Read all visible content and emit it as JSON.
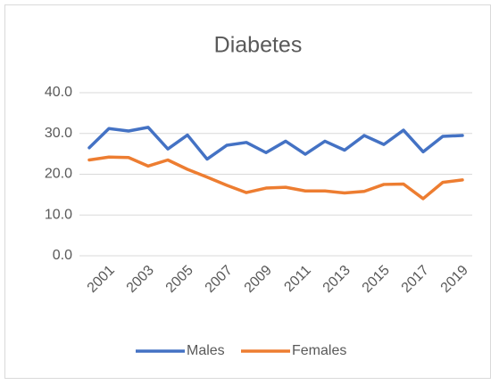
{
  "chart_data": {
    "type": "line",
    "title": "Diabetes",
    "categories": [
      null,
      "2001",
      null,
      "2003",
      null,
      "2005",
      null,
      "2007",
      null,
      "2009",
      null,
      "2011",
      null,
      "2013",
      null,
      "2015",
      null,
      "2017",
      null,
      "2019"
    ],
    "series": [
      {
        "name": "Males",
        "color": "#4472c4",
        "values": [
          26.5,
          31.2,
          30.6,
          31.5,
          26.2,
          29.6,
          23.7,
          27.1,
          27.8,
          25.3,
          28.1,
          24.9,
          28.1,
          25.9,
          29.5,
          27.3,
          30.8,
          25.5,
          29.3,
          29.5
        ]
      },
      {
        "name": "Females",
        "color": "#ed7d31",
        "values": [
          23.5,
          24.2,
          24.1,
          22.0,
          23.5,
          21.2,
          19.3,
          17.3,
          15.5,
          16.6,
          16.8,
          15.9,
          15.9,
          15.4,
          15.8,
          17.5,
          17.6,
          14.0,
          18.0,
          18.6
        ]
      }
    ],
    "ylim": [
      0,
      40
    ],
    "yticks": [
      {
        "value": 0,
        "label": "0.0"
      },
      {
        "value": 10,
        "label": "10.0"
      },
      {
        "value": 20,
        "label": "20.0"
      },
      {
        "value": 30,
        "label": "30.0"
      },
      {
        "value": 40,
        "label": "40.0"
      }
    ],
    "grid": true,
    "legend": "bottom"
  }
}
